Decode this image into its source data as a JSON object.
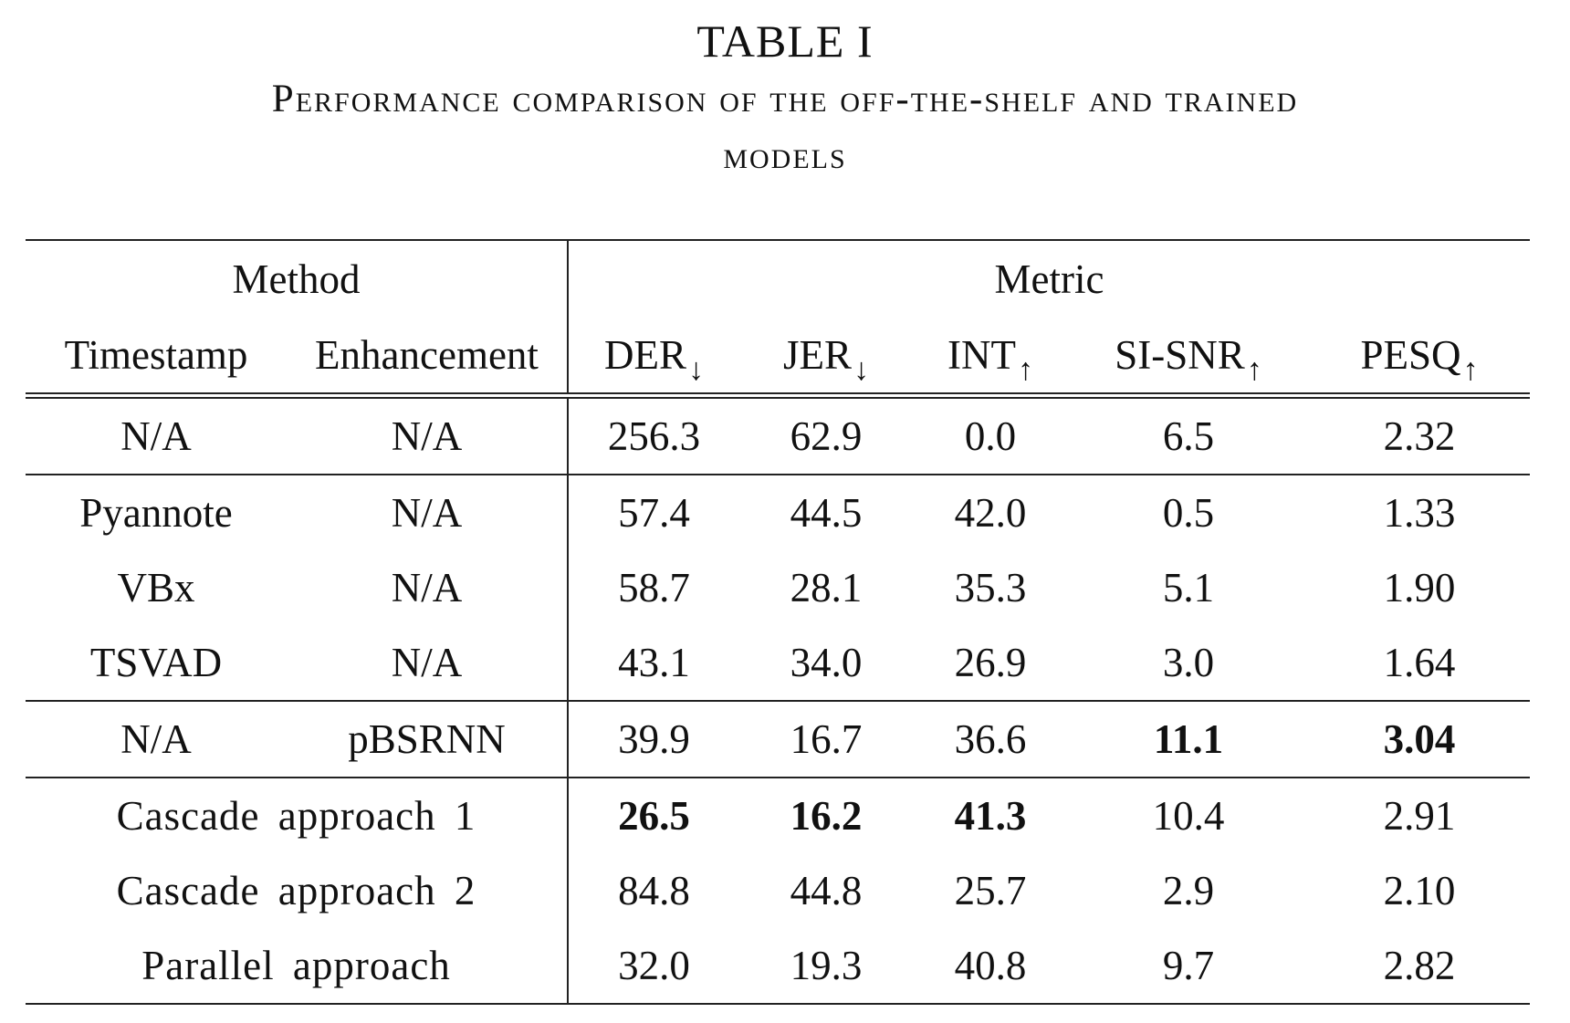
{
  "caption": {
    "table_label": "TABLE I",
    "title_line_1": "Performance comparison of the off-the-shelf and trained",
    "title_line_2": "models"
  },
  "header": {
    "method_group": "Method",
    "metric_group": "Metric",
    "columns": {
      "timestamp": "Timestamp",
      "enhancement": "Enhancement",
      "der": "DER",
      "der_arrow": "↓",
      "jer": "JER",
      "jer_arrow": "↓",
      "int": "INT",
      "int_arrow": "↑",
      "si_snr": "SI-SNR",
      "si_snr_arrow": "↑",
      "pesq": "PESQ",
      "pesq_arrow": "↑"
    }
  },
  "rows": [
    {
      "timestamp": "N/A",
      "enhancement": "N/A",
      "der": "256.3",
      "jer": "62.9",
      "int": "0.0",
      "si_snr": "6.5",
      "pesq": "2.32"
    },
    {
      "timestamp": "Pyannote",
      "enhancement": "N/A",
      "der": "57.4",
      "jer": "44.5",
      "int": "42.0",
      "si_snr": "0.5",
      "pesq": "1.33"
    },
    {
      "timestamp": "VBx",
      "enhancement": "N/A",
      "der": "58.7",
      "jer": "28.1",
      "int": "35.3",
      "si_snr": "5.1",
      "pesq": "1.90"
    },
    {
      "timestamp": "TSVAD",
      "enhancement": "N/A",
      "der": "43.1",
      "jer": "34.0",
      "int": "26.9",
      "si_snr": "3.0",
      "pesq": "1.64"
    },
    {
      "timestamp": "N/A",
      "enhancement": "pBSRNN",
      "der": "39.9",
      "jer": "16.7",
      "int": "36.6",
      "si_snr": "11.1",
      "pesq": "3.04"
    },
    {
      "method": "Cascade approach 1",
      "der": "26.5",
      "jer": "16.2",
      "int": "41.3",
      "si_snr": "10.4",
      "pesq": "2.91"
    },
    {
      "method": "Cascade approach 2",
      "der": "84.8",
      "jer": "44.8",
      "int": "25.7",
      "si_snr": "2.9",
      "pesq": "2.10"
    },
    {
      "method": "Parallel approach",
      "der": "32.0",
      "jer": "19.3",
      "int": "40.8",
      "si_snr": "9.7",
      "pesq": "2.82"
    }
  ]
}
